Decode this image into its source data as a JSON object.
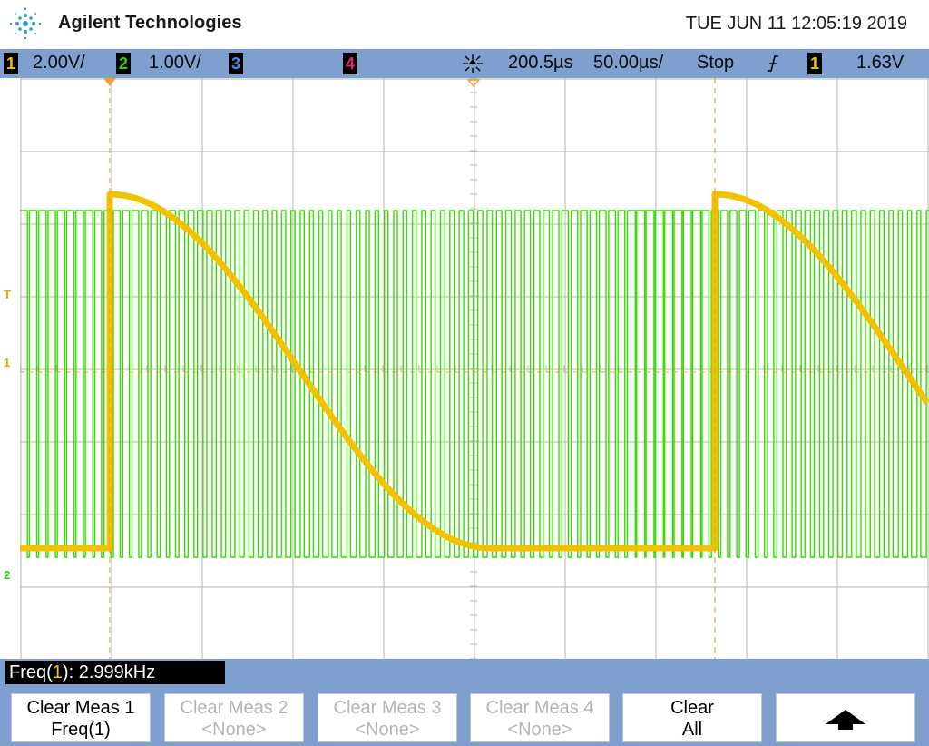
{
  "header": {
    "brand": "Agilent Technologies",
    "datetime": "TUE JUN 11 12:05:19 2019"
  },
  "statusbar": {
    "ch1": {
      "number": "1",
      "scale": "2.00V/",
      "color": "#f2c200"
    },
    "ch2": {
      "number": "2",
      "scale": "1.00V/",
      "color": "#2fd400"
    },
    "ch3": {
      "number": "3",
      "color": "#4d8ad9"
    },
    "ch4": {
      "number": "4",
      "color": "#e0287a"
    },
    "delay": "200.5µs",
    "timebase": "50.00µs/",
    "run_state": "Stop",
    "trigger_slope_icon": "falling-edge-icon",
    "trigger_channel": "1",
    "trigger_level": "1.63V"
  },
  "markers": {
    "trigger_level_marker": "T",
    "ch1_ground_marker": "1",
    "ch2_ground_marker": "2"
  },
  "measurement": {
    "label_prefix": "Freq(",
    "channel": "1",
    "label_suffix": "): ",
    "value": "2.999kHz"
  },
  "softkeys": [
    {
      "line1": "Clear Meas 1",
      "line2": "Freq(1)"
    },
    {
      "line1": "Clear Meas 2",
      "line2": "<None>"
    },
    {
      "line1": "Clear Meas 3",
      "line2": "<None>"
    },
    {
      "line1": "Clear Meas 4",
      "line2": "<None>"
    },
    {
      "line1": "Clear",
      "line2": "All"
    }
  ],
  "colors": {
    "accent_bar": "#7f9fcf",
    "ch1_trace": "#f2c200",
    "ch2_trace": "#2fd400",
    "grid": "#b0b0b0",
    "cursor": "#f0a030"
  }
}
